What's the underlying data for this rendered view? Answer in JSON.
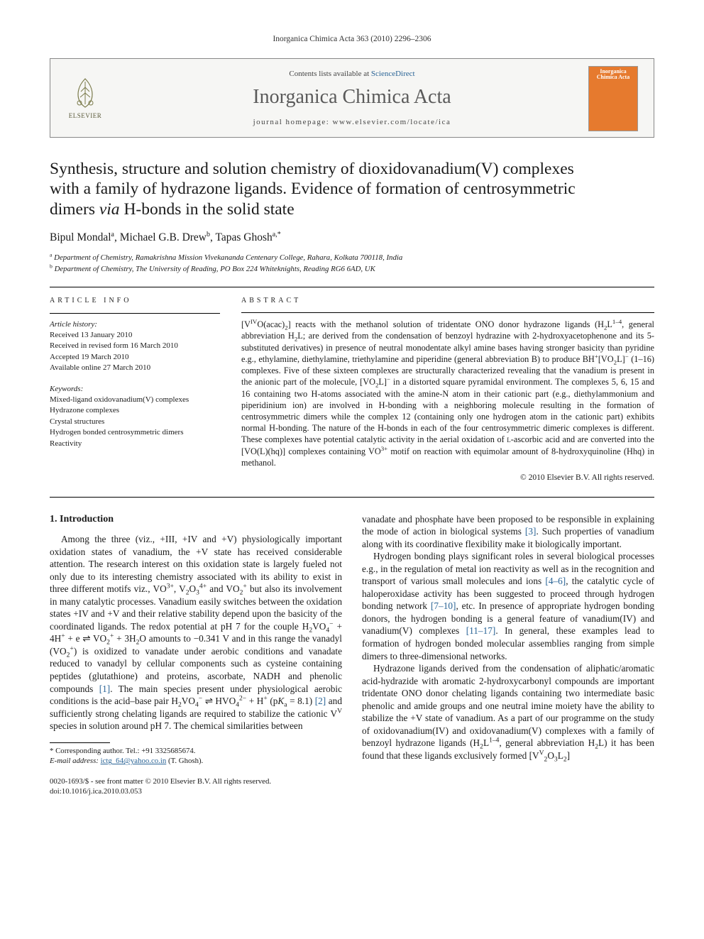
{
  "running_head": "Inorganica Chimica Acta 363 (2010) 2296–2306",
  "masthead": {
    "contents_prefix": "Contents lists available at ",
    "contents_link": "ScienceDirect",
    "journal": "Inorganica Chimica Acta",
    "homepage": "journal homepage: www.elsevier.com/locate/ica",
    "publisher": "ELSEVIER",
    "cover_title": "Inorganica Chimica Acta"
  },
  "title_lines": [
    "Synthesis, structure and solution chemistry of dioxidovanadium(V) complexes",
    "with a family of hydrazone ligands. Evidence of formation of centrosymmetric",
    "dimers "
  ],
  "title_tail_ital": "via",
  "title_tail_rest": " H-bonds in the solid state",
  "authors_html": "Bipul Mondal<sup>a</sup>, Michael G.B. Drew<sup>b</sup>, Tapas Ghosh<sup>a,*</sup>",
  "affiliations": [
    {
      "sup": "a",
      "text": "Department of Chemistry, Ramakrishna Mission Vivekananda Centenary College, Rahara, Kolkata 700118, India"
    },
    {
      "sup": "b",
      "text": "Department of Chemistry, The University of Reading, PO Box 224 Whiteknights, Reading RG6 6AD, UK"
    }
  ],
  "article_info": {
    "heading": "ARTICLE INFO",
    "history_head": "Article history:",
    "history": [
      "Received 13 January 2010",
      "Received in revised form 16 March 2010",
      "Accepted 19 March 2010",
      "Available online 27 March 2010"
    ],
    "keywords_head": "Keywords:",
    "keywords": [
      "Mixed-ligand oxidovanadium(V) complexes",
      "Hydrazone complexes",
      "Crystal structures",
      "Hydrogen bonded centrosymmetric dimers",
      "Reactivity"
    ]
  },
  "abstract": {
    "heading": "ABSTRACT",
    "text": "[VIVO(acac)2] reacts with the methanol solution of tridentate ONO donor hydrazone ligands (H2L1–4, general abbreviation H2L; are derived from the condensation of benzoyl hydrazine with 2-hydroxyacetophenone and its 5-substituted derivatives) in presence of neutral monodentate alkyl amine bases having stronger basicity than pyridine e.g., ethylamine, diethylamine, triethylamine and piperidine (general abbreviation B) to produce BH+[VO2L]− (1–16) complexes. Five of these sixteen complexes are structurally characterized revealing that the vanadium is present in the anionic part of the molecule, [VO2L]− in a distorted square pyramidal environment. The complexes 5, 6, 15 and 16 containing two H-atoms associated with the amine-N atom in their cationic part (e.g., diethylammonium and piperidinium ion) are involved in H-bonding with a neighboring molecule resulting in the formation of centrosymmetric dimers while the complex 12 (containing only one hydrogen atom in the cationic part) exhibits normal H-bonding. The nature of the H-bonds in each of the four centrosymmetric dimeric complexes is different. These complexes have potential catalytic activity in the aerial oxidation of L-ascorbic acid and are converted into the [VO(L)(hq)] complexes containing VO3+ motif on reaction with equimolar amount of 8-hydroxyquinoline (Hhq) in methanol.",
    "copyright": "© 2010 Elsevier B.V. All rights reserved."
  },
  "section1": {
    "heading": "1. Introduction",
    "p1": "Among the three (viz., +III, +IV and +V) physiologically important oxidation states of vanadium, the +V state has received considerable attention. The research interest on this oxidation state is largely fueled not only due to its interesting chemistry associated with its ability to exist in three different motifs viz., VO3+, V2O34+ and VO2+ but also its involvement in many catalytic processes. Vanadium easily switches between the oxidation states +IV and +V and their relative stability depend upon the basicity of the coordinated ligands. The redox potential at pH 7 for the couple H2VO4− + 4H+ + e ⇌ VO2+ + 3H2O amounts to −0.341 V and in this range the vanadyl (VO2+) is oxidized to vanadate under aerobic conditions and vanadate reduced to vanadyl by cellular components such as cysteine containing peptides (glutathione) and proteins, ascorbate, NADH and phenolic compounds [1]. The main species present under physiological aerobic conditions is the acid–base pair H2VO4− ⇌ HVO42− + H+ (pKa = 8.1) [2] and sufficiently strong chelating ligands are required to stabilize the cationic VV species in solution around pH 7. The chemical similarities between",
    "p2": "vanadate and phosphate have been proposed to be responsible in explaining the mode of action in biological systems [3]. Such properties of vanadium along with its coordinative flexibility make it biologically important.",
    "p3": "Hydrogen bonding plays significant roles in several biological processes e.g., in the regulation of metal ion reactivity as well as in the recognition and transport of various small molecules and ions [4–6], the catalytic cycle of haloperoxidase activity has been suggested to proceed through hydrogen bonding network [7–10], etc. In presence of appropriate hydrogen bonding donors, the hydrogen bonding is a general feature of vanadium(IV) and vanadium(V) complexes [11–17]. In general, these examples lead to formation of hydrogen bonded molecular assemblies ranging from simple dimers to three-dimensional networks.",
    "p4": "Hydrazone ligands derived from the condensation of aliphatic/aromatic acid-hydrazide with aromatic 2-hydroxycarbonyl compounds are important tridentate ONO donor chelating ligands containing two intermediate basic phenolic and amide groups and one neutral imine moiety have the ability to stabilize the +V state of vanadium. As a part of our programme on the study of oxidovanadium(IV) and oxidovanadium(V) complexes with a family of benzoyl hydrazone ligands (H2L1–4, general abbreviation H2L) it has been found that these ligands exclusively formed [VV2O3L2]"
  },
  "footnotes": {
    "corr": "* Corresponding author. Tel.: +91 3325685674.",
    "email_label": "E-mail address:",
    "email": "ictg_64@yahoo.co.in",
    "email_who": "(T. Ghosh)."
  },
  "footer": {
    "line1": "0020-1693/$ - see front matter © 2010 Elsevier B.V. All rights reserved.",
    "line2": "doi:10.1016/j.ica.2010.03.053"
  },
  "colors": {
    "link": "#2a6496",
    "cover_bg": "#e67a2e",
    "mast_bg": "#f6f6f4",
    "border": "#888888"
  }
}
